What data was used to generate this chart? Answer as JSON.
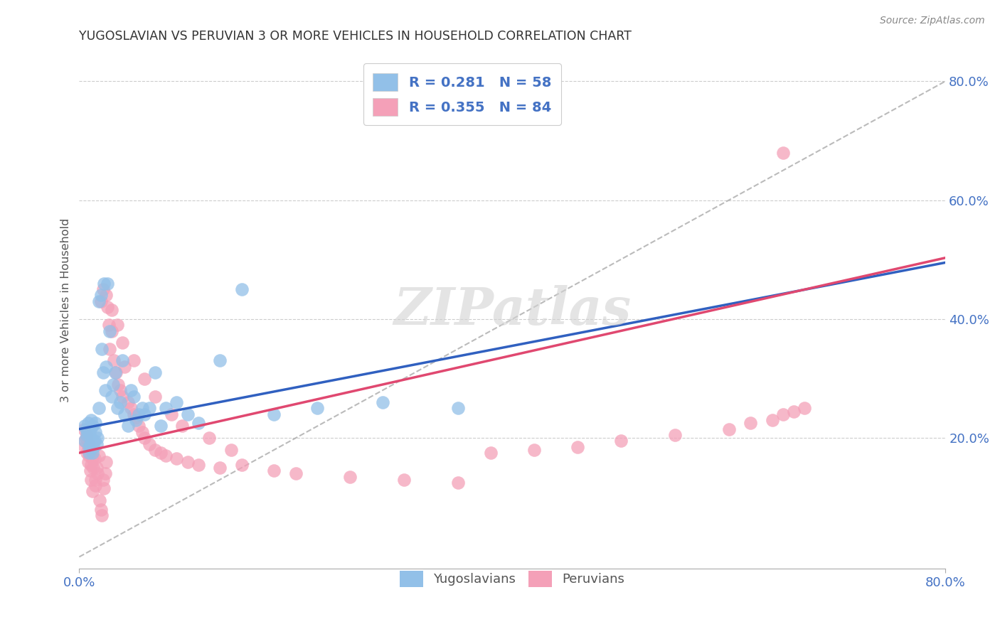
{
  "title": "YUGOSLAVIAN VS PERUVIAN 3 OR MORE VEHICLES IN HOUSEHOLD CORRELATION CHART",
  "source": "Source: ZipAtlas.com",
  "ylabel": "3 or more Vehicles in Household",
  "watermark": "ZIPatlas",
  "legend_label1": "Yugoslavians",
  "legend_label2": "Peruvians",
  "color_blue": "#92C0E8",
  "color_pink": "#F4A0B8",
  "color_blue_line": "#3060C0",
  "color_pink_line": "#E04870",
  "color_dashed_line": "#AAAAAA",
  "xmin": 0.0,
  "xmax": 0.8,
  "ymin": -0.02,
  "ymax": 0.85,
  "yug_x": [
    0.005,
    0.005,
    0.006,
    0.007,
    0.008,
    0.008,
    0.009,
    0.009,
    0.01,
    0.01,
    0.011,
    0.011,
    0.012,
    0.012,
    0.013,
    0.014,
    0.015,
    0.015,
    0.016,
    0.017,
    0.018,
    0.018,
    0.02,
    0.021,
    0.022,
    0.023,
    0.024,
    0.025,
    0.026,
    0.028,
    0.03,
    0.031,
    0.033,
    0.035,
    0.038,
    0.04,
    0.042,
    0.045,
    0.048,
    0.05,
    0.052,
    0.055,
    0.058,
    0.06,
    0.065,
    0.07,
    0.075,
    0.08,
    0.09,
    0.1,
    0.11,
    0.13,
    0.15,
    0.18,
    0.22,
    0.28,
    0.35
  ],
  "yug_y": [
    0.22,
    0.195,
    0.215,
    0.205,
    0.21,
    0.225,
    0.175,
    0.185,
    0.19,
    0.215,
    0.2,
    0.23,
    0.175,
    0.22,
    0.185,
    0.195,
    0.21,
    0.225,
    0.19,
    0.2,
    0.25,
    0.43,
    0.44,
    0.35,
    0.31,
    0.46,
    0.28,
    0.32,
    0.46,
    0.38,
    0.27,
    0.29,
    0.31,
    0.25,
    0.26,
    0.33,
    0.24,
    0.22,
    0.28,
    0.27,
    0.23,
    0.24,
    0.25,
    0.24,
    0.25,
    0.31,
    0.22,
    0.25,
    0.26,
    0.24,
    0.225,
    0.33,
    0.45,
    0.24,
    0.25,
    0.26,
    0.25
  ],
  "per_x": [
    0.004,
    0.005,
    0.005,
    0.006,
    0.007,
    0.007,
    0.008,
    0.008,
    0.009,
    0.009,
    0.01,
    0.01,
    0.011,
    0.011,
    0.012,
    0.012,
    0.013,
    0.014,
    0.015,
    0.015,
    0.016,
    0.017,
    0.018,
    0.019,
    0.02,
    0.021,
    0.022,
    0.023,
    0.024,
    0.025,
    0.026,
    0.027,
    0.028,
    0.03,
    0.032,
    0.034,
    0.036,
    0.038,
    0.04,
    0.042,
    0.045,
    0.048,
    0.05,
    0.052,
    0.055,
    0.058,
    0.06,
    0.065,
    0.07,
    0.075,
    0.08,
    0.09,
    0.1,
    0.11,
    0.13,
    0.15,
    0.18,
    0.2,
    0.25,
    0.3,
    0.35,
    0.38,
    0.42,
    0.46,
    0.5,
    0.55,
    0.6,
    0.62,
    0.64,
    0.65,
    0.66,
    0.67,
    0.02,
    0.022,
    0.025,
    0.03,
    0.035,
    0.04,
    0.05,
    0.06,
    0.07,
    0.085,
    0.095,
    0.12,
    0.14,
    0.65
  ],
  "per_y": [
    0.215,
    0.195,
    0.185,
    0.2,
    0.175,
    0.205,
    0.16,
    0.185,
    0.17,
    0.19,
    0.145,
    0.175,
    0.155,
    0.13,
    0.165,
    0.11,
    0.15,
    0.165,
    0.13,
    0.12,
    0.15,
    0.14,
    0.17,
    0.095,
    0.08,
    0.07,
    0.13,
    0.115,
    0.14,
    0.16,
    0.42,
    0.39,
    0.35,
    0.38,
    0.33,
    0.31,
    0.29,
    0.28,
    0.27,
    0.32,
    0.26,
    0.25,
    0.24,
    0.235,
    0.22,
    0.21,
    0.2,
    0.19,
    0.18,
    0.175,
    0.17,
    0.165,
    0.16,
    0.155,
    0.15,
    0.155,
    0.145,
    0.14,
    0.135,
    0.13,
    0.125,
    0.175,
    0.18,
    0.185,
    0.195,
    0.205,
    0.215,
    0.225,
    0.23,
    0.24,
    0.245,
    0.25,
    0.43,
    0.45,
    0.44,
    0.415,
    0.39,
    0.36,
    0.33,
    0.3,
    0.27,
    0.24,
    0.22,
    0.2,
    0.18,
    0.68
  ]
}
